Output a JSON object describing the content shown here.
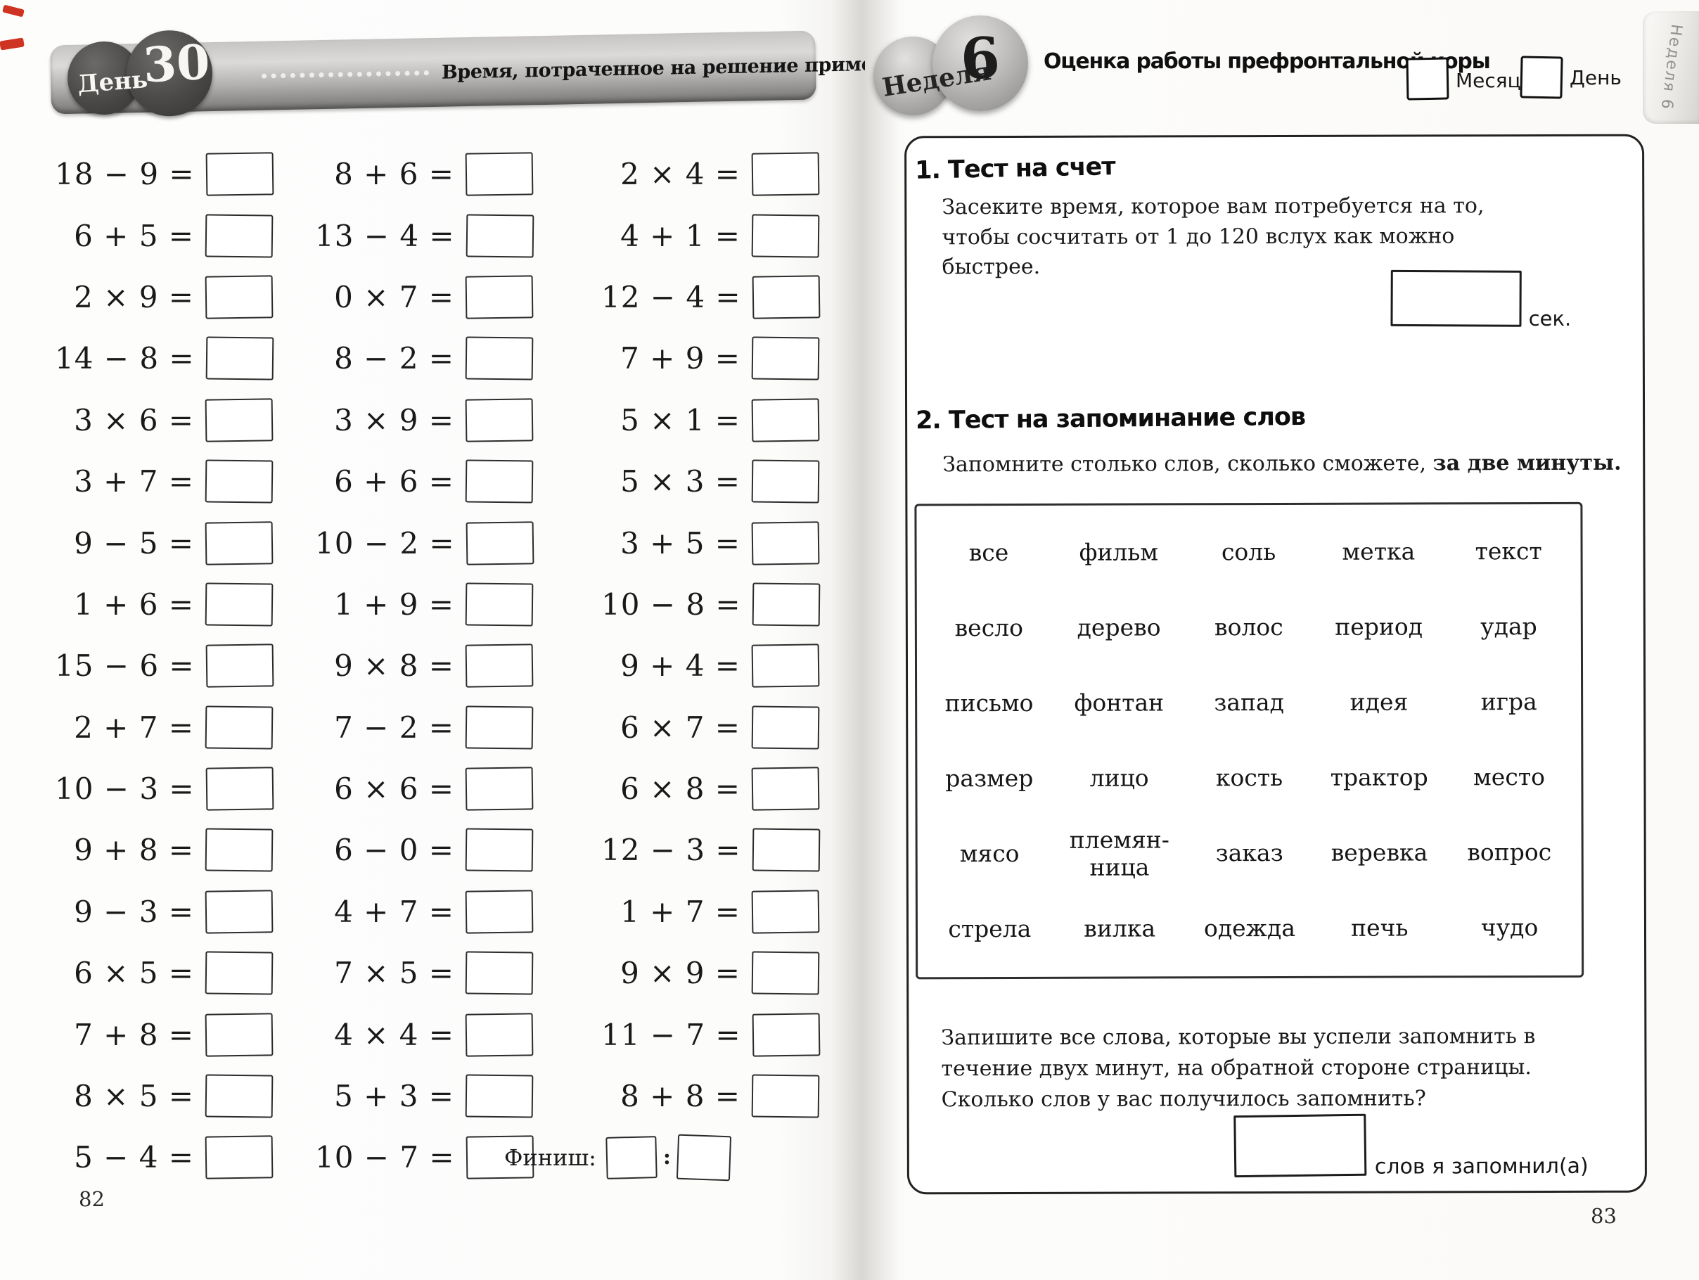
{
  "left_page": {
    "day_badge": {
      "label": "День",
      "number": "30"
    },
    "timer_label": "Время, потраченное на решение примеров:",
    "colon": ":",
    "columns": {
      "col1": [
        "18 − 9 =",
        "6 + 5 =",
        "2 × 9 =",
        "14 − 8 =",
        "3 × 6 =",
        "3 + 7 =",
        "9 − 5 =",
        "1 + 6 =",
        "15 − 6 =",
        "2 + 7 =",
        "10 − 3 =",
        "9 + 8 =",
        "9 − 3 =",
        "6 × 5 =",
        "7 + 8 =",
        "8 × 5 =",
        "5 − 4 ="
      ],
      "col2": [
        "8 + 6 =",
        "13 − 4 =",
        "0 × 7 =",
        "8 − 2 =",
        "3 × 9 =",
        "6 + 6 =",
        "10 − 2 =",
        "1 + 9 =",
        "9 × 8 =",
        "7 − 2 =",
        "6 × 6 =",
        "6 − 0 =",
        "4 + 7 =",
        "7 × 5 =",
        "4 × 4 =",
        "5 + 3 =",
        "10 − 7 ="
      ],
      "col3": [
        "2 × 4 =",
        "4 + 1 =",
        "12 − 4 =",
        "7 + 9 =",
        "5 × 1 =",
        "5 × 3 =",
        "3 + 5 =",
        "10 − 8 =",
        "9 + 4 =",
        "6 × 7 =",
        "6 × 8 =",
        "12 − 3 =",
        "1 + 7 =",
        "9 × 9 =",
        "11 − 7 =",
        "8 + 8 ="
      ]
    },
    "finish_label": "Финиш:",
    "page_number": "82"
  },
  "right_page": {
    "week_badge": {
      "label": "Неделя",
      "number": "6"
    },
    "title": "Оценка работы префронтальной коры",
    "month_label": "Месяц",
    "day_label": "День",
    "side_tab": "Неделя 6",
    "section1": {
      "heading": "1. Тест на счет",
      "body": "Засеките время, которое вам потребуется на то, чтобы сосчитать от 1 до 120 вслух как можно быстрее.",
      "unit": "сек."
    },
    "section2": {
      "heading": "2. Тест на запоминание слов",
      "intro_normal": "Запомните столько слов, сколько сможете, ",
      "intro_bold": "за две минуты.",
      "words": [
        "все",
        "фильм",
        "соль",
        "метка",
        "текст",
        "весло",
        "дерево",
        "волос",
        "период",
        "удар",
        "письмо",
        "фонтан",
        "запад",
        "идея",
        "игра",
        "размер",
        "лицо",
        "кость",
        "трактор",
        "место",
        "мясо",
        "племян-\nница",
        "заказ",
        "веревка",
        "вопрос",
        "стрела",
        "вилка",
        "одежда",
        "печь",
        "чудо"
      ],
      "outro": "Запишите все слова, которые вы успели запомнить в течение двух минут, на обратной стороне страницы. Сколько слов у вас получилось запомнить?",
      "result_label": "слов я запомнил(а)"
    },
    "page_number": "83"
  }
}
